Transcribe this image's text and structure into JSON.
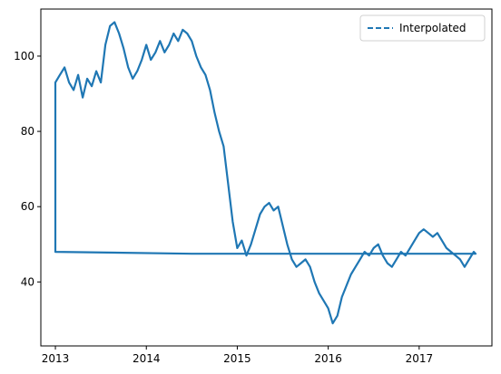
{
  "chart_data": {
    "type": "line",
    "title": "",
    "xlabel": "",
    "ylabel": "",
    "xlim": [
      2012.84,
      2017.8
    ],
    "ylim": [
      23,
      112.5
    ],
    "x_ticks": [
      2013,
      2014,
      2015,
      2016,
      2017
    ],
    "x_tick_labels": [
      "2013",
      "2014",
      "2015",
      "2016",
      "2017"
    ],
    "y_ticks": [
      40,
      60,
      80,
      100
    ],
    "y_tick_labels": [
      "40",
      "60",
      "80",
      "100"
    ],
    "grid": false,
    "legend": {
      "position": "top-right",
      "entries": [
        {
          "label": "Interpolated",
          "style": "dashed"
        }
      ]
    },
    "series": [
      {
        "name": "Interpolated",
        "color": "#1f77b4",
        "line_style": "dashed",
        "x": [
          2013.0,
          2013.0,
          2013.05,
          2013.1,
          2013.15,
          2013.2,
          2013.25,
          2013.3,
          2013.35,
          2013.4,
          2013.45,
          2013.5,
          2013.55,
          2013.6,
          2013.65,
          2013.7,
          2013.75,
          2013.8,
          2013.85,
          2013.9,
          2013.95,
          2014.0,
          2014.05,
          2014.1,
          2014.15,
          2014.2,
          2014.25,
          2014.3,
          2014.35,
          2014.4,
          2014.45,
          2014.5,
          2014.55,
          2014.6,
          2014.65,
          2014.7,
          2014.75,
          2014.8,
          2014.85,
          2014.9,
          2014.95,
          2015.0,
          2015.05,
          2015.1,
          2015.15,
          2015.2,
          2015.25,
          2015.3,
          2015.35,
          2015.4,
          2015.45,
          2015.5,
          2015.55,
          2015.6,
          2015.65,
          2015.7,
          2015.75,
          2015.8,
          2015.85,
          2015.9,
          2015.95,
          2016.0,
          2016.05,
          2016.1,
          2016.15,
          2016.2,
          2016.25,
          2016.3,
          2016.35,
          2016.4,
          2016.45,
          2016.5,
          2016.55,
          2016.6,
          2016.65,
          2016.7,
          2016.75,
          2016.8,
          2016.85,
          2016.9,
          2016.95,
          2017.0,
          2017.05,
          2017.1,
          2017.15,
          2017.2,
          2017.25,
          2017.3,
          2017.35,
          2017.4,
          2017.45,
          2017.5,
          2017.55,
          2017.6,
          2017.62,
          2014.5,
          2013.0
        ],
        "y": [
          48.0,
          93.0,
          95.0,
          97.0,
          93.0,
          91.0,
          95.0,
          89.0,
          94.0,
          92.0,
          96.0,
          93.0,
          103.0,
          108.0,
          109.0,
          106.0,
          102.0,
          97.0,
          94.0,
          96.0,
          99.0,
          103.0,
          99.0,
          101.0,
          104.0,
          101.0,
          103.0,
          106.0,
          104.0,
          107.0,
          106.0,
          104.0,
          100.0,
          97.0,
          95.0,
          91.0,
          85.0,
          80.0,
          76.0,
          66.0,
          56.0,
          49.0,
          51.0,
          47.0,
          50.0,
          54.0,
          58.0,
          60.0,
          61.0,
          59.0,
          60.0,
          55.0,
          50.0,
          46.0,
          44.0,
          45.0,
          46.0,
          44.0,
          40.0,
          37.0,
          35.0,
          33.0,
          29.0,
          31.0,
          36.0,
          39.0,
          42.0,
          44.0,
          46.0,
          48.0,
          47.0,
          49.0,
          50.0,
          47.0,
          45.0,
          44.0,
          46.0,
          48.0,
          47.0,
          49.0,
          51.0,
          53.0,
          54.0,
          53.0,
          52.0,
          53.0,
          51.0,
          49.0,
          48.0,
          47.0,
          46.0,
          44.0,
          46.0,
          48.0,
          47.5,
          47.5,
          48.0
        ]
      }
    ]
  }
}
